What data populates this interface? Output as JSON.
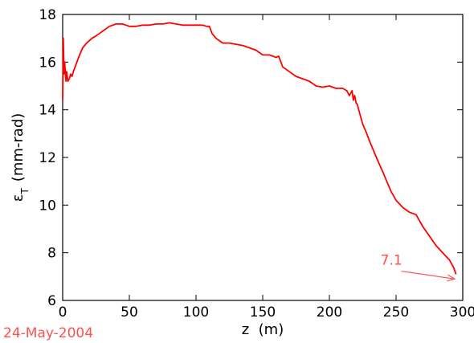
{
  "chart_data": {
    "type": "line",
    "title": "",
    "xlabel": "z  (m)",
    "ylabel": {
      "main": "ε",
      "subscript": "T",
      "unit": "(mm-rad)"
    },
    "xlim": [
      0,
      300
    ],
    "ylim": [
      6,
      18
    ],
    "xticks": [
      0,
      50,
      100,
      150,
      200,
      250,
      300
    ],
    "yticks": [
      6,
      8,
      10,
      12,
      14,
      16,
      18
    ],
    "xtick_labels": [
      "0",
      "50",
      "100",
      "150",
      "200",
      "250",
      "300"
    ],
    "ytick_labels": [
      "6",
      "8",
      "10",
      "12",
      "14",
      "16",
      "18"
    ],
    "grid": false,
    "line_color": "#ff0000",
    "series": [
      {
        "x": [
          0,
          0.5,
          1,
          1.5,
          2,
          2.5,
          3,
          4,
          5,
          6,
          7,
          8,
          10,
          12,
          15,
          18,
          22,
          25,
          30,
          35,
          40,
          45,
          50,
          55,
          60,
          65,
          70,
          75,
          80,
          85,
          90,
          95,
          100,
          105,
          108,
          110,
          112,
          115,
          120,
          125,
          130,
          135,
          140,
          145,
          150,
          155,
          160,
          162,
          165,
          170,
          175,
          180,
          185,
          190,
          195,
          200,
          205,
          210,
          213,
          215,
          217,
          218,
          219,
          220,
          221,
          222,
          225,
          228,
          230,
          233,
          236,
          240,
          243,
          246,
          250,
          255,
          260,
          265,
          270,
          275,
          280,
          285,
          290,
          293,
          295
        ],
        "y": [
          14.4,
          17.0,
          15.5,
          16.0,
          15.6,
          15.2,
          15.6,
          15.2,
          15.3,
          15.5,
          15.4,
          15.6,
          15.9,
          16.2,
          16.6,
          16.8,
          17.0,
          17.1,
          17.3,
          17.5,
          17.6,
          17.6,
          17.5,
          17.5,
          17.55,
          17.55,
          17.6,
          17.6,
          17.65,
          17.6,
          17.55,
          17.55,
          17.55,
          17.55,
          17.5,
          17.5,
          17.2,
          17.0,
          16.8,
          16.8,
          16.75,
          16.7,
          16.6,
          16.5,
          16.3,
          16.3,
          16.2,
          16.25,
          15.8,
          15.6,
          15.4,
          15.3,
          15.2,
          15.0,
          14.95,
          15.0,
          14.9,
          14.9,
          14.8,
          14.6,
          14.8,
          14.4,
          14.6,
          14.3,
          14.2,
          14.0,
          13.4,
          13.0,
          12.7,
          12.3,
          11.9,
          11.4,
          11.0,
          10.6,
          10.2,
          9.9,
          9.7,
          9.6,
          9.1,
          8.7,
          8.3,
          8.0,
          7.7,
          7.4,
          7.1
        ]
      }
    ],
    "annotations": [
      {
        "text": "7.1",
        "color": "#ff5050",
        "arrow_to": {
          "x": 294,
          "y": 6.9
        },
        "text_at": {
          "x": 248,
          "y": 7.7
        }
      }
    ]
  },
  "date_stamp": "24-May-2004",
  "date_stamp_color": "#ff5050"
}
